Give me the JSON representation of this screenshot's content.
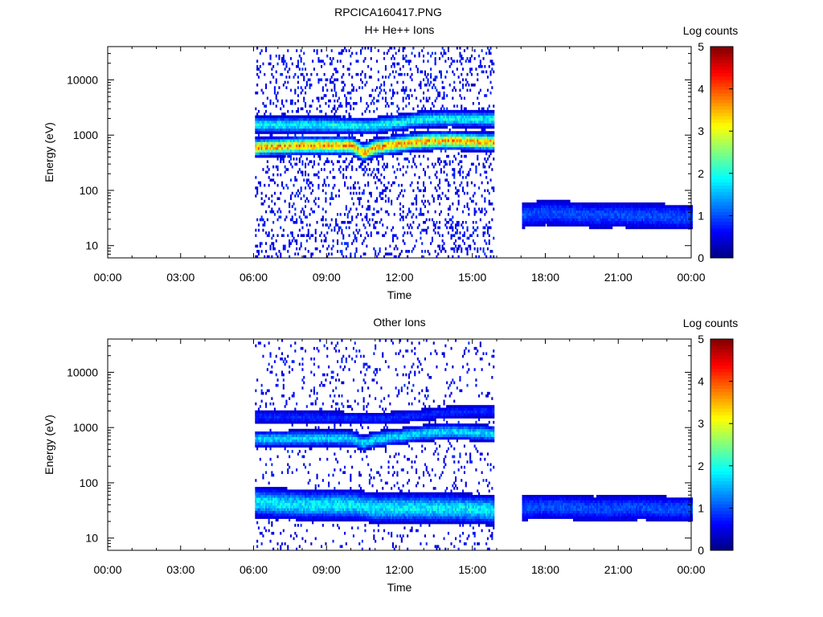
{
  "page_title": "RPCICA160417.PNG",
  "chart_data": [
    {
      "type": "heatmap",
      "title": "H+ He++ Ions",
      "xlabel": "Time",
      "ylabel": "Energy (eV)",
      "x_ticks": [
        "00:00",
        "03:00",
        "06:00",
        "09:00",
        "12:00",
        "15:00",
        "18:00",
        "21:00",
        "00:00"
      ],
      "x_range_hours": [
        0,
        24
      ],
      "y_scale": "log",
      "y_ticks": [
        10,
        100,
        1000,
        10000
      ],
      "y_tick_labels": [
        "10",
        "100",
        "1000",
        "10000"
      ],
      "ylim": [
        6,
        40000
      ],
      "colorbar": {
        "label": "Log counts",
        "range": [
          0,
          5
        ],
        "ticks": [
          "0",
          "1",
          "2",
          "3",
          "4",
          "5"
        ],
        "colormap": "jet"
      },
      "data_gaps_hours": [
        [
          0,
          6.0
        ],
        [
          15.9,
          17.0
        ]
      ],
      "bands": [
        {
          "name": "main",
          "t": [
            6.0,
            8.0,
            10.0,
            10.5,
            11.0,
            12.0,
            13.0,
            14.0,
            15.9
          ],
          "energy_eV": [
            600,
            650,
            650,
            480,
            600,
            700,
            780,
            800,
            750
          ],
          "level": 3.5
        },
        {
          "name": "upper",
          "t": [
            6.0,
            8.0,
            10.0,
            10.5,
            11.0,
            12.0,
            13.0,
            14.0,
            15.9
          ],
          "energy_eV": [
            1550,
            1550,
            1500,
            1450,
            1500,
            1700,
            1950,
            2000,
            1950
          ],
          "level": 1.9
        },
        {
          "name": "late-low",
          "t": [
            17.0,
            18.0,
            19.0,
            20.0,
            21.0,
            22.0,
            23.0,
            24.0
          ],
          "energy_eV": [
            35,
            40,
            38,
            35,
            36,
            35,
            34,
            33
          ],
          "level": 1.0
        }
      ],
      "colors": {
        "background": "#ffffff",
        "axes": "#000000"
      }
    },
    {
      "type": "heatmap",
      "title": "Other Ions",
      "xlabel": "Time",
      "ylabel": "Energy (eV)",
      "x_ticks": [
        "00:00",
        "03:00",
        "06:00",
        "09:00",
        "12:00",
        "15:00",
        "18:00",
        "21:00",
        "00:00"
      ],
      "x_range_hours": [
        0,
        24
      ],
      "y_scale": "log",
      "y_ticks": [
        10,
        100,
        1000,
        10000
      ],
      "y_tick_labels": [
        "10",
        "100",
        "1000",
        "10000"
      ],
      "ylim": [
        6,
        40000
      ],
      "colorbar": {
        "label": "Log counts",
        "range": [
          0,
          5
        ],
        "ticks": [
          "0",
          "1",
          "2",
          "3",
          "4",
          "5"
        ],
        "colormap": "jet"
      },
      "data_gaps_hours": [
        [
          0,
          6.0
        ],
        [
          15.9,
          17.0
        ]
      ],
      "bands": [
        {
          "name": "main",
          "t": [
            6.0,
            8.0,
            10.0,
            10.5,
            11.0,
            12.0,
            13.0,
            14.0,
            15.9
          ],
          "energy_eV": [
            620,
            640,
            640,
            520,
            620,
            700,
            800,
            850,
            780
          ],
          "level": 1.7
        },
        {
          "name": "upper",
          "t": [
            6.0,
            8.0,
            10.0,
            11.0,
            12.0,
            13.0,
            14.0,
            15.9
          ],
          "energy_eV": [
            1600,
            1550,
            1500,
            1450,
            1550,
            1700,
            1900,
            2000
          ],
          "level": 0.8
        },
        {
          "name": "low",
          "t": [
            6.0,
            8.0,
            10.0,
            11.0,
            12.0,
            13.0,
            14.0,
            15.9
          ],
          "energy_eV": [
            45,
            40,
            40,
            35,
            35,
            35,
            35,
            32
          ],
          "level": 1.8
        },
        {
          "name": "late-low",
          "t": [
            17.0,
            18.0,
            19.0,
            20.0,
            21.0,
            22.0,
            23.0,
            24.0
          ],
          "energy_eV": [
            35,
            38,
            36,
            34,
            35,
            36,
            34,
            34
          ],
          "level": 1.0
        }
      ],
      "colors": {
        "background": "#ffffff",
        "axes": "#000000"
      }
    }
  ]
}
